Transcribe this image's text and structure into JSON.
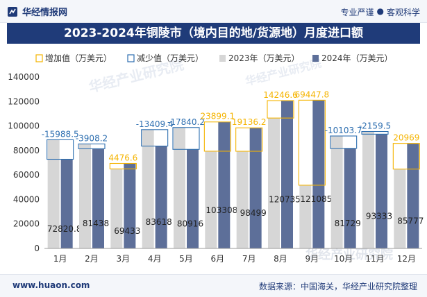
{
  "header": {
    "brand_name": "华经情报网",
    "tagline_left": "专业严谨",
    "tagline_sep": "●",
    "tagline_right": "客观科学"
  },
  "footer": {
    "url": "www.huaon.com",
    "source": "数据来源：中国海关，华经产业研究院整理"
  },
  "watermark": "华经产业研究院",
  "colors": {
    "increase": "#f5b400",
    "decrease": "#2e6fb0",
    "bar2023": "#d6d6d6",
    "bar2024": "#5d6f99",
    "title_bg": "#1f3b79"
  },
  "chart_data": {
    "type": "bar",
    "title": "2023-2024年铜陵市（境内目的地/货源地）月度进口额",
    "categories": [
      "1月",
      "2月",
      "3月",
      "4月",
      "5月",
      "6月",
      "7月",
      "8月",
      "9月",
      "10月",
      "11月",
      "12月"
    ],
    "ylim": [
      0,
      140000
    ],
    "yticks": [
      0,
      20000,
      40000,
      60000,
      80000,
      100000,
      120000,
      140000
    ],
    "legend_position": "top-left",
    "grid": false,
    "series": [
      {
        "name": "2023年（万美元）",
        "values": [
          88809.3,
          85346.2,
          64956.4,
          97027.4,
          98756.2,
          79408.9,
          79362.8,
          106488.4,
          51637.2,
          91832.7,
          95492.5,
          64808
        ]
      },
      {
        "name": "2024年（万美元）",
        "values": [
          72820.8,
          81438,
          69433,
          83618,
          80916,
          103308,
          98499,
          120735,
          121085,
          81729,
          93333,
          85777
        ]
      }
    ],
    "change_series": [
      {
        "name": "增加值（万美元）",
        "kind": "increase"
      },
      {
        "name": "减少值（万美元）",
        "kind": "decrease"
      }
    ],
    "changes": [
      -15988.5,
      -3908.2,
      4476.6,
      -13409.4,
      -17840.2,
      23899.1,
      19136.2,
      14246.6,
      69447.8,
      -10103.7,
      -2159.5,
      20969
    ],
    "change_labels": [
      "-15988.5",
      "-3908.2",
      "4476.6",
      "-13409.4",
      "-17840.2",
      "23899.1",
      "19136.2",
      "14246.6",
      "69447.8",
      "-10103.7",
      "-2159.5",
      "20969"
    ]
  }
}
